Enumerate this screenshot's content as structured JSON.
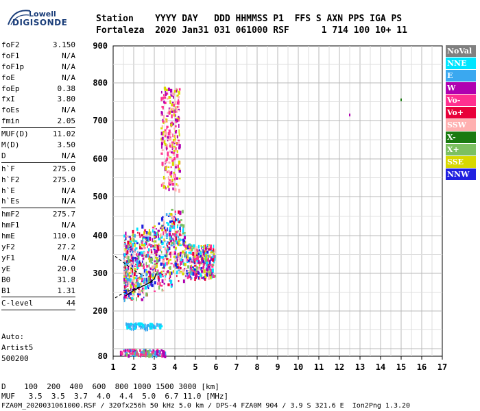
{
  "logo": {
    "line1": "Lowell",
    "line2": "DIGISONDE"
  },
  "header": {
    "line1": "Station    YYYY DAY   DDD HHMMSS P1  FFS S AXN PPS IGA PS",
    "line2": "Fortaleza  2020 Jan31 031 061000 RSF      1 714 100 10+ 11"
  },
  "params": {
    "group1": [
      {
        "name": "foF2",
        "value": "3.150"
      },
      {
        "name": "foF1",
        "value": "N/A"
      },
      {
        "name": "foF1p",
        "value": "N/A"
      },
      {
        "name": "foE",
        "value": "N/A"
      },
      {
        "name": "foEp",
        "value": "0.38"
      },
      {
        "name": "fxI",
        "value": "3.80"
      },
      {
        "name": "foEs",
        "value": "N/A"
      },
      {
        "name": "fmin",
        "value": "2.05"
      }
    ],
    "group2": [
      {
        "name": "MUF(D)",
        "value": "11.02"
      },
      {
        "name": "M(D)",
        "value": "3.50"
      },
      {
        "name": "D",
        "value": "N/A"
      }
    ],
    "group3": [
      {
        "name": "h`F",
        "value": "275.0"
      },
      {
        "name": "h`F2",
        "value": "275.0"
      },
      {
        "name": "h`E",
        "value": "N/A"
      },
      {
        "name": "h`Es",
        "value": "N/A"
      }
    ],
    "group4": [
      {
        "name": "hmF2",
        "value": "275.7"
      },
      {
        "name": "hmF1",
        "value": "N/A"
      },
      {
        "name": "hmE",
        "value": "110.0"
      },
      {
        "name": "yF2",
        "value": "27.2"
      },
      {
        "name": "yF1",
        "value": "N/A"
      },
      {
        "name": "yE",
        "value": "20.0"
      },
      {
        "name": "B0",
        "value": "31.8"
      },
      {
        "name": "B1",
        "value": "1.31"
      }
    ],
    "group5": [
      {
        "name": "C-level",
        "value": "44"
      }
    ]
  },
  "info": {
    "auto_label": "Auto:",
    "artist": "Artist5",
    "code": "500200"
  },
  "footer": {
    "d_row": "D    100  200  400  600  800 1000 1500 3000 [km]",
    "muf_row": "MUF   3.5  3.5  3.7  4.0  4.4  5.0  6.7 11.0 [MHz]",
    "file_row": "FZA0M_2020031061000.RSF / 320fx256h 50 kHz 5.0 km / DPS-4 FZA0M 904 / 3.9 S 321.6 E  Ion2Png 1.3.20"
  },
  "legend": [
    {
      "label": "NoVal",
      "color": "#808080"
    },
    {
      "label": "NNE",
      "color": "#00e5ff"
    },
    {
      "label": "E",
      "color": "#3aa8f0"
    },
    {
      "label": "W",
      "color": "#b000b0"
    },
    {
      "label": "Vo-",
      "color": "#ff3090"
    },
    {
      "label": "Vo+",
      "color": "#e8003a"
    },
    {
      "label": "SSW",
      "color": "#ffb0b0"
    },
    {
      "label": "X-",
      "color": "#1a7a10"
    },
    {
      "label": "X+",
      "color": "#7cc060"
    },
    {
      "label": "SSE",
      "color": "#d8d800"
    },
    {
      "label": "NNW",
      "color": "#2020e0"
    }
  ],
  "chart_data": {
    "type": "scatter",
    "title": "",
    "xlabel": "",
    "ylabel": "",
    "xlim": [
      1,
      17
    ],
    "ylim": [
      80,
      900
    ],
    "x_ticks": [
      1,
      2,
      3,
      4,
      5,
      6,
      7,
      8,
      9,
      10,
      11,
      12,
      13,
      14,
      15,
      16,
      17
    ],
    "y_ticks": [
      80,
      200,
      300,
      400,
      500,
      600,
      700,
      800,
      900
    ],
    "grid": true,
    "legend_position": "right",
    "scale_note": "y axis height in km (non-linear); x axis frequency in MHz",
    "clusters": [
      {
        "name": "F-trace main",
        "x_range": [
          1.5,
          5.9
        ],
        "y_range": [
          230,
          520
        ],
        "colors": [
          "#b000b0",
          "#ff3090",
          "#e8003a",
          "#ffb0b0",
          "#d8d800",
          "#3aa8f0",
          "#00e5ff",
          "#7cc060",
          "#2020e0"
        ]
      },
      {
        "name": "F-trace upper",
        "x_range": [
          3.3,
          4.2
        ],
        "y_range": [
          520,
          790
        ],
        "colors": [
          "#d8d800",
          "#ffb0b0",
          "#b000b0",
          "#ff3090"
        ]
      },
      {
        "name": "E-region",
        "x_range": [
          1.6,
          3.3
        ],
        "y_range": [
          155,
          170
        ],
        "colors": [
          "#3aa8f0",
          "#00e5ff"
        ]
      },
      {
        "name": "low-height",
        "x_range": [
          1.3,
          3.5
        ],
        "y_range": [
          85,
          100
        ],
        "colors": [
          "#b000b0",
          "#7cc060",
          "#3aa8f0",
          "#ff3090"
        ]
      }
    ],
    "isolated_points": [
      {
        "x": 12.5,
        "y": 715,
        "color": "#b000b0"
      },
      {
        "x": 15.0,
        "y": 755,
        "color": "#1a7a10"
      }
    ],
    "traces": [
      {
        "name": "dashed profile",
        "style": "dashed",
        "points": [
          [
            1.1,
            235
          ],
          [
            1.5,
            248
          ],
          [
            2.0,
            258
          ],
          [
            2.5,
            268
          ],
          [
            2.9,
            278
          ]
        ]
      },
      {
        "name": "dashed upper",
        "style": "dashed",
        "points": [
          [
            1.1,
            345
          ],
          [
            1.6,
            325
          ],
          [
            2.1,
            305
          ],
          [
            2.5,
            293
          ]
        ]
      },
      {
        "name": "solid profile",
        "style": "solid",
        "points": [
          [
            1.6,
            240
          ],
          [
            2.0,
            255
          ],
          [
            2.4,
            265
          ],
          [
            2.7,
            273
          ],
          [
            3.0,
            285
          ],
          [
            3.1,
            300
          ]
        ]
      }
    ]
  }
}
